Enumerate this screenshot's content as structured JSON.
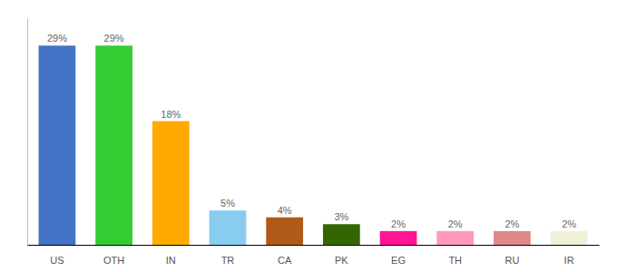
{
  "chart_data": {
    "type": "bar",
    "categories": [
      "US",
      "OTH",
      "IN",
      "TR",
      "CA",
      "PK",
      "EG",
      "TH",
      "RU",
      "IR"
    ],
    "values": [
      29,
      29,
      18,
      5,
      4,
      3,
      2,
      2,
      2,
      2
    ],
    "value_labels": [
      "29%",
      "29%",
      "18%",
      "5%",
      "4%",
      "3%",
      "2%",
      "2%",
      "2%",
      "2%"
    ],
    "colors": [
      "#4472c4",
      "#33cc33",
      "#ffaa00",
      "#88ccee",
      "#b05a1a",
      "#336600",
      "#ff1493",
      "#ff99bb",
      "#e08888",
      "#f0f0d8"
    ],
    "ylim": [
      0,
      33
    ],
    "data_labels": true,
    "tick_labels": "x"
  }
}
